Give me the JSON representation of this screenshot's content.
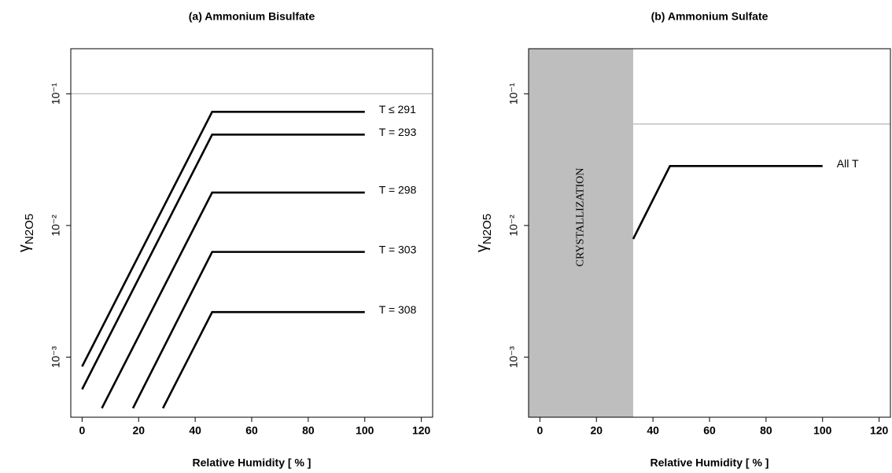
{
  "chart_data": [
    {
      "type": "line",
      "title": "(a) Ammonium Bisulfate",
      "xlabel": "Relative Humidity [ % ]",
      "ylabel": "γ",
      "ylabel_subscript": "N2O5",
      "xlim": [
        -4,
        124
      ],
      "xticks": [
        0,
        20,
        40,
        60,
        80,
        100,
        120
      ],
      "ylim": [
        0.00035,
        0.22
      ],
      "log_y": true,
      "yticks": [
        {
          "value": 0.001,
          "label": "10⁻³"
        },
        {
          "value": 0.01,
          "label": "10⁻²"
        },
        {
          "value": 0.1,
          "label": "10⁻¹"
        }
      ],
      "hline": {
        "y": 0.1,
        "color": "#bbbbbb"
      },
      "series": [
        {
          "name": "T ≤ 291",
          "color": "#000000",
          "x": [
            0,
            46,
            100
          ],
          "values": [
            0.00085,
            0.073,
            0.073
          ]
        },
        {
          "name": "T = 293",
          "color": "#000000",
          "x": [
            0,
            46,
            100
          ],
          "values": [
            0.00057,
            0.049,
            0.049
          ]
        },
        {
          "name": "T = 298",
          "color": "#000000",
          "x": [
            7,
            46,
            100
          ],
          "values": [
            0.00041,
            0.0178,
            0.0178
          ]
        },
        {
          "name": "T = 303",
          "color": "#000000",
          "x": [
            18,
            46,
            100
          ],
          "values": [
            0.00041,
            0.0063,
            0.0063
          ]
        },
        {
          "name": "T = 308",
          "color": "#000000",
          "x": [
            28.6,
            46,
            100
          ],
          "values": [
            0.00041,
            0.0022,
            0.0022
          ]
        }
      ]
    },
    {
      "type": "line",
      "title": "(b) Ammonium Sulfate",
      "xlabel": "Relative Humidity [ % ]",
      "ylabel": "γ",
      "ylabel_subscript": "N2O5",
      "xlim": [
        -4,
        124
      ],
      "xticks": [
        0,
        20,
        40,
        60,
        80,
        100,
        120
      ],
      "ylim": [
        0.00035,
        0.22
      ],
      "log_y": true,
      "yticks": [
        {
          "value": 0.001,
          "label": "10⁻³"
        },
        {
          "value": 0.01,
          "label": "10⁻²"
        },
        {
          "value": 0.1,
          "label": "10⁻¹"
        }
      ],
      "region": {
        "label": "CRYSTALLIZATION",
        "x": [
          -4,
          33
        ],
        "color": "#bebebe"
      },
      "hline": {
        "y": 0.059,
        "x": [
          33,
          124
        ],
        "color": "#bbbbbb"
      },
      "series": [
        {
          "name": "All T",
          "color": "#000000",
          "x": [
            33,
            46,
            100
          ],
          "values": [
            0.0079,
            0.0283,
            0.0283
          ]
        }
      ]
    }
  ]
}
